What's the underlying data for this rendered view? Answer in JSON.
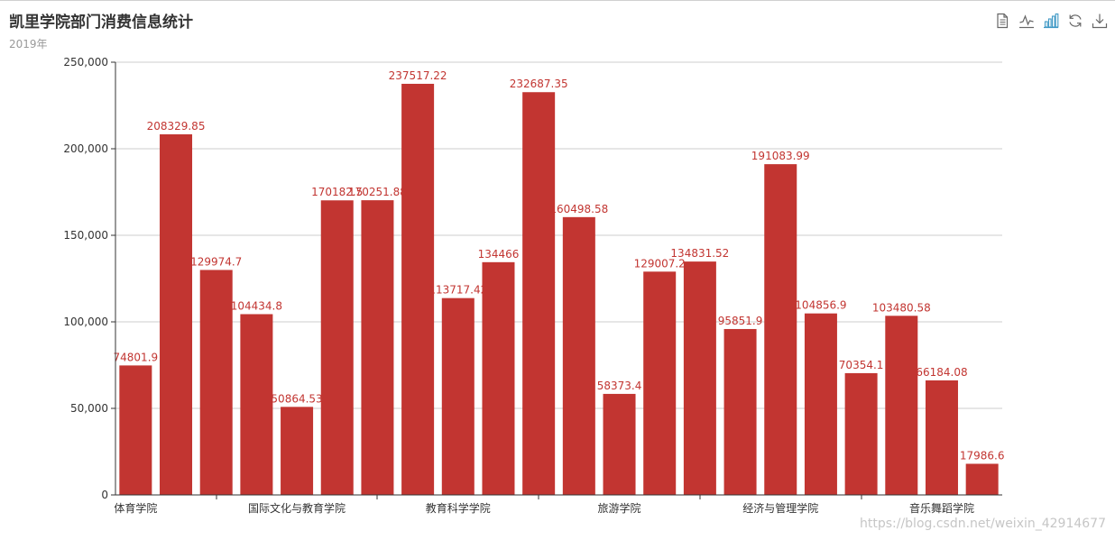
{
  "title": "凯里学院部门消费信息统计",
  "subtitle": "2019年",
  "watermark": "https://blog.csdn.net/weixin_42914677",
  "colors": {
    "bar": "#c23531",
    "label": "#c23531",
    "grid": "#cccccc",
    "axis": "#333333",
    "icon": "#666666",
    "icon_active": "#3e98c5"
  },
  "toolbox": [
    {
      "icon": "data-view-icon"
    },
    {
      "icon": "line-chart-icon"
    },
    {
      "icon": "bar-chart-icon",
      "active": true
    },
    {
      "icon": "restore-icon"
    },
    {
      "icon": "download-icon"
    }
  ],
  "chart_data": {
    "type": "bar",
    "ylim": [
      0,
      250000
    ],
    "yticks": [
      0,
      50000,
      100000,
      150000,
      200000,
      250000
    ],
    "ytick_labels": [
      "0",
      "50,000",
      "100,000",
      "150,000",
      "200,000",
      "250,000"
    ],
    "grid": true,
    "values": [
      74801.9,
      208329.85,
      129974.7,
      104434.8,
      50864.53,
      170182.5,
      170251.88,
      237517.22,
      113717.42,
      134466,
      232687.35,
      160498.58,
      58373.4,
      129007.2,
      134831.52,
      95851.9,
      191083.99,
      104856.9,
      70354.1,
      103480.58,
      66184.08,
      17986.6
    ],
    "value_labels": [
      "74801.9",
      "208329.85",
      "129974.7",
      "104434.8",
      "50864.53",
      "170182.5",
      "170251.88",
      "237517.22",
      "113717.42",
      "134466",
      "232687.35",
      "160498.58",
      "58373.4",
      "129007.2",
      "134831.52",
      "95851.9",
      "191083.99",
      "104856.9",
      "70354.1",
      "103480.58",
      "66184.08",
      "17986.6"
    ],
    "category_labels": [
      {
        "index": 0,
        "text": "体育学院"
      },
      {
        "index": 4,
        "text": "国际文化与教育学院"
      },
      {
        "index": 8,
        "text": "教育科学学院"
      },
      {
        "index": 12,
        "text": "旅游学院"
      },
      {
        "index": 16,
        "text": "经济与管理学院"
      },
      {
        "index": 20,
        "text": "音乐舞蹈学院"
      }
    ]
  }
}
